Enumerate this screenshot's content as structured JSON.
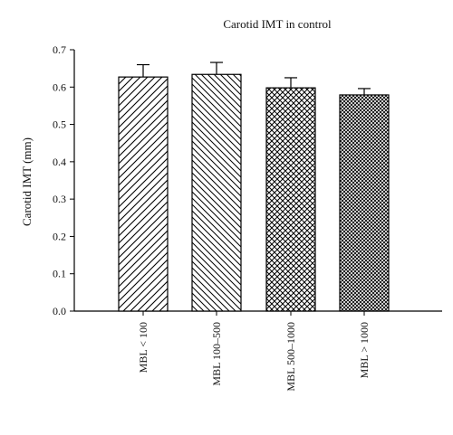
{
  "chart_data": {
    "type": "bar",
    "title": "Carotid IMT in control",
    "xlabel": "",
    "ylabel": "Carotid IMT (mm)",
    "ylim": [
      0,
      0.7
    ],
    "yticks": [
      "0.0",
      "0.1",
      "0.2",
      "0.3",
      "0.4",
      "0.5",
      "0.6",
      "0.7"
    ],
    "categories": [
      "MBL < 100",
      "MBL 100–500",
      "MBL 500–1000",
      "MBL > 1000"
    ],
    "values": [
      0.627,
      0.634,
      0.598,
      0.579
    ],
    "error_upper": [
      0.033,
      0.032,
      0.027,
      0.017
    ],
    "patterns": [
      "diagonal-up-hatch",
      "diagonal-down-hatch",
      "cross-hatch",
      "dense-cross-hatch"
    ],
    "grid": false,
    "legend": "none",
    "colors": {
      "fill": "#ffffff",
      "stroke": "#000000"
    }
  }
}
